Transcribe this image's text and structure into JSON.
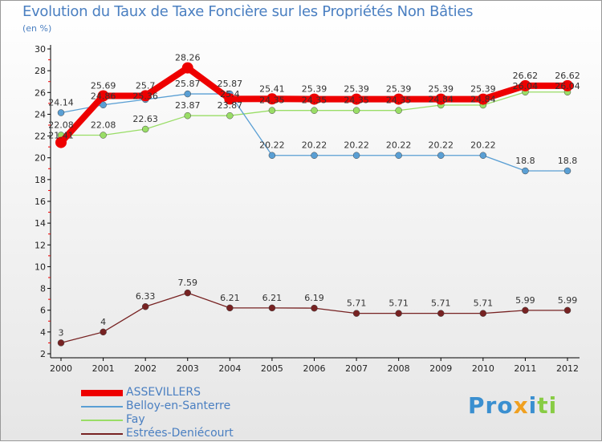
{
  "chart_data": {
    "type": "line",
    "title": "Evolution du Taux de Taxe Foncière sur les Propriétés Non Bâties",
    "ylabel": "(en %)",
    "xlabel": "",
    "ylim": [
      2,
      30
    ],
    "yticks": [
      2,
      4,
      6,
      8,
      10,
      12,
      14,
      16,
      18,
      20,
      22,
      24,
      26,
      28,
      30
    ],
    "x": [
      2000,
      2001,
      2002,
      2003,
      2004,
      2005,
      2006,
      2007,
      2008,
      2009,
      2010,
      2011,
      2012
    ],
    "grid": false,
    "legend_position": "bottom-left",
    "series": [
      {
        "name": "ASSEVILLERS",
        "color": "#ee0000",
        "values": [
          21.41,
          25.69,
          25.7,
          28.26,
          25.4,
          25.41,
          25.39,
          25.39,
          25.39,
          25.39,
          25.39,
          26.62,
          26.62
        ]
      },
      {
        "name": "Belloy-en-Santerre",
        "color": "#5a9fd4",
        "values": [
          24.14,
          24.86,
          25.36,
          25.87,
          25.87,
          20.22,
          20.22,
          20.22,
          20.22,
          20.22,
          20.22,
          18.8,
          18.8
        ]
      },
      {
        "name": "Fay",
        "color": "#99dd66",
        "values": [
          22.08,
          22.08,
          22.63,
          23.87,
          23.87,
          24.35,
          24.35,
          24.35,
          24.35,
          24.84,
          24.84,
          26.04,
          26.04
        ]
      },
      {
        "name": "Estrées-Deniécourt",
        "color": "#772222",
        "values": [
          3,
          4,
          6.33,
          7.59,
          6.21,
          6.21,
          6.19,
          5.71,
          5.71,
          5.71,
          5.71,
          5.99,
          5.99
        ]
      }
    ]
  },
  "logo": "Proxiti"
}
